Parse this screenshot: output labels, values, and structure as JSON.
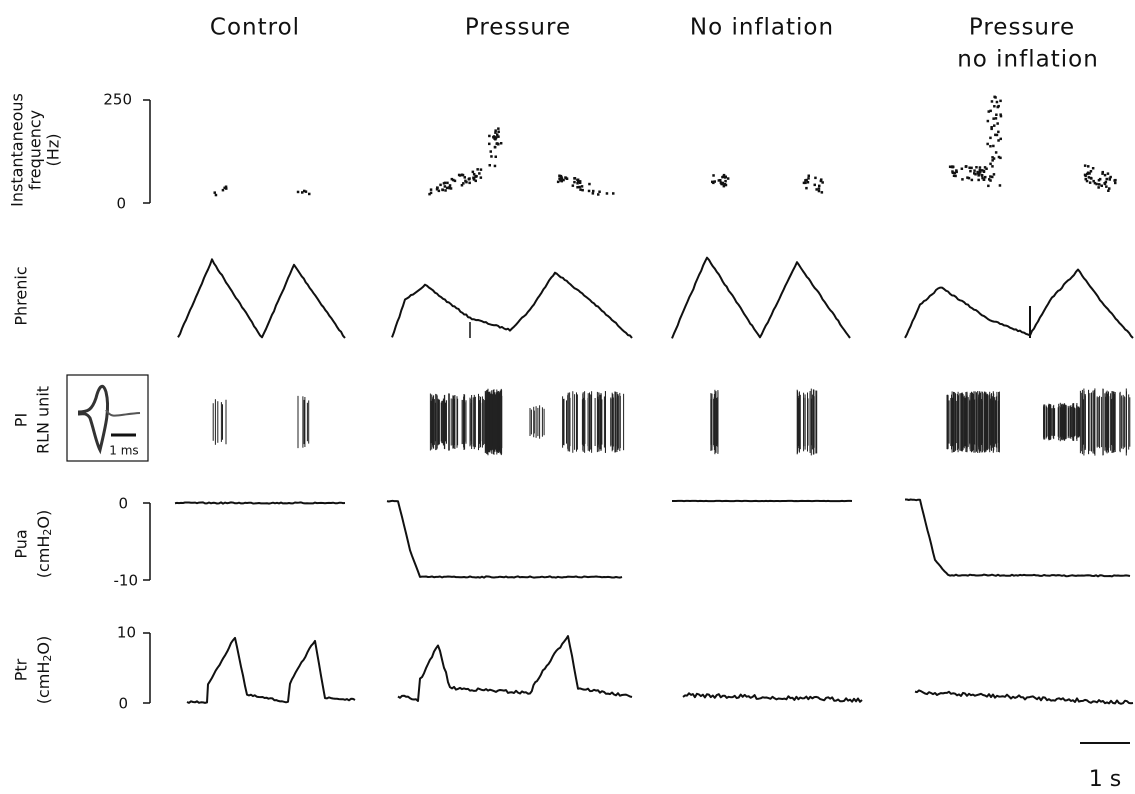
{
  "columns": [
    "Control",
    "Pressure",
    "No inflation",
    [
      "Pressure",
      "no inflation"
    ]
  ],
  "rows": {
    "frequency": {
      "label": [
        "Instantaneous",
        "frequency",
        "(Hz)"
      ],
      "ticks": [
        "250",
        "0"
      ]
    },
    "phrenic": {
      "label": [
        "Phrenic"
      ]
    },
    "rln": {
      "label": [
        "PI",
        "RLN unit"
      ],
      "inset_scale": "1 ms"
    },
    "pua": {
      "label": [
        "Pua",
        [
          "(cmH",
          "2",
          "O)"
        ]
      ],
      "ticks": [
        "0",
        "-10"
      ]
    },
    "ptr": {
      "label": [
        "Ptr",
        [
          "(cmH",
          "2",
          "O)"
        ]
      ],
      "ticks": [
        "10",
        "0"
      ]
    }
  },
  "scale_bar": "1 s"
}
